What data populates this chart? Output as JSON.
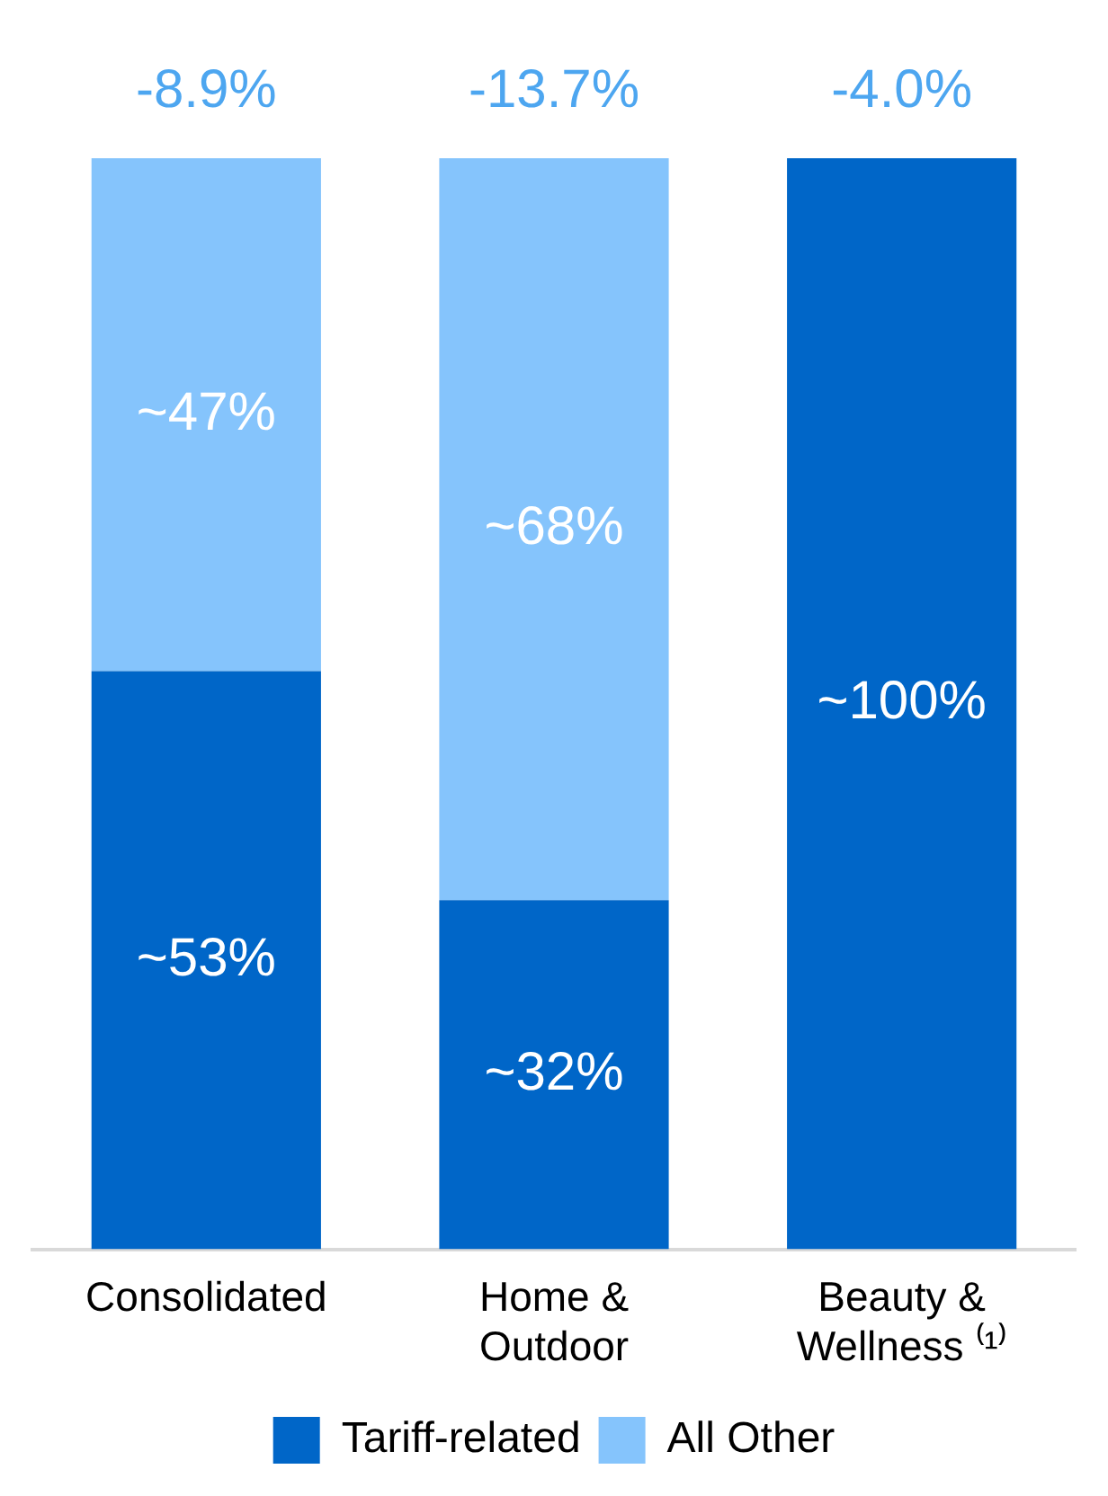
{
  "chart_data": {
    "type": "bar",
    "stacked": true,
    "categories": [
      "Consolidated",
      "Home & Outdoor",
      "Beauty & Wellness ⁽¹⁾"
    ],
    "series": [
      {
        "name": "Tariff-related",
        "color": "#0066c8",
        "values": [
          53,
          32,
          100
        ],
        "value_labels": [
          "~53%",
          "~32%",
          "~100%"
        ]
      },
      {
        "name": "All Other",
        "color": "#85c4fc",
        "values": [
          47,
          68,
          null
        ],
        "value_labels": [
          "~47%",
          "~68%",
          null
        ]
      }
    ],
    "ylim": [
      0,
      100
    ],
    "tick_labels": "x",
    "grid": false,
    "legend": "bottom",
    "annotations": [
      {
        "text": "-8.9%",
        "x": "Consolidated",
        "y": 100
      },
      {
        "text": "-13.7%",
        "x": "Home & Outdoor",
        "y": 100
      },
      {
        "text": "-4.0%",
        "x": "Beauty & Wellness ⁽¹⁾",
        "y": 100
      }
    ]
  }
}
